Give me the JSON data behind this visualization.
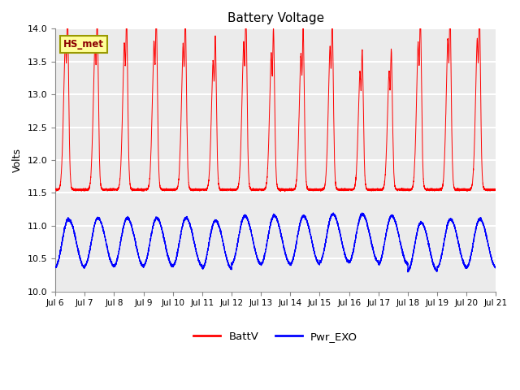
{
  "title": "Battery Voltage",
  "ylabel": "Volts",
  "xlim_days": [
    6,
    21
  ],
  "ylim": [
    10.0,
    14.0
  ],
  "yticks": [
    10.0,
    10.5,
    11.0,
    11.5,
    12.0,
    12.5,
    13.0,
    13.5,
    14.0
  ],
  "xtick_labels": [
    "Jul 6",
    "Jul 7",
    "Jul 8",
    "Jul 9",
    "Jul 10",
    "Jul 11",
    "Jul 12",
    "Jul 13",
    "Jul 14",
    "Jul 15",
    "Jul 16",
    "Jul 17",
    "Jul 18",
    "Jul 19",
    "Jul 20",
    "Jul 21"
  ],
  "batt_color": "#FF0000",
  "pwr_color": "#0000FF",
  "legend_labels": [
    "BattV",
    "Pwr_EXO"
  ],
  "annotation_text": "HS_met",
  "annotation_box_color": "#FFFF99",
  "annotation_box_edge": "#999900",
  "background_color": "#EBEBEB",
  "grid_color": "white",
  "figsize": [
    6.4,
    4.8
  ],
  "dpi": 100
}
